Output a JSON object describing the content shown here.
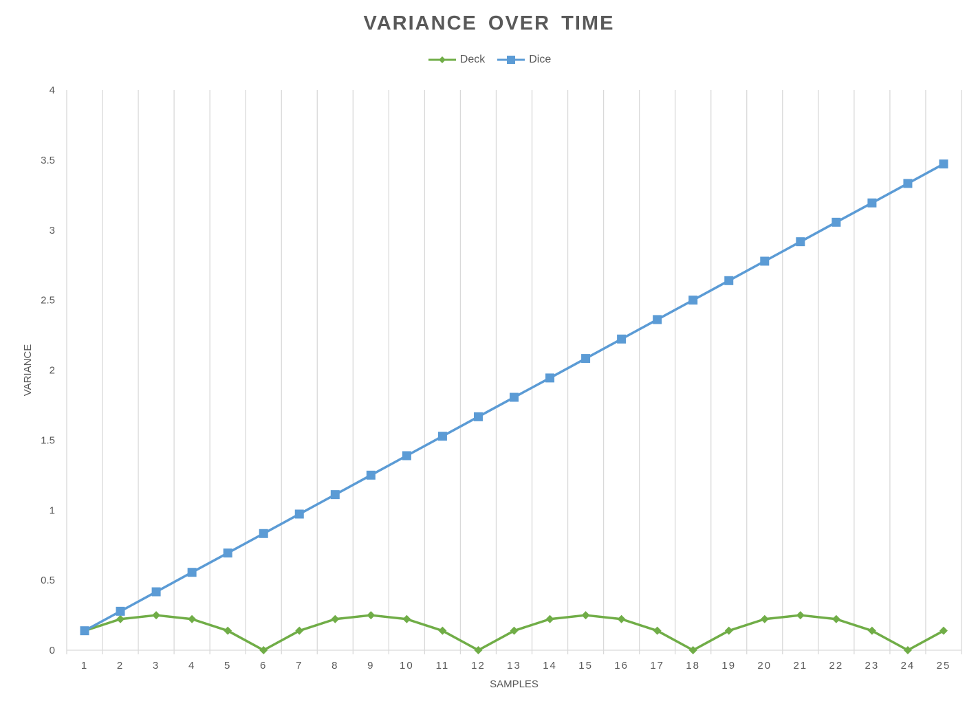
{
  "chart_data": {
    "type": "line",
    "title": "VARIANCE OVER TIME",
    "xlabel": "SAMPLES",
    "ylabel": "VARIANCE",
    "ylim": [
      0,
      4
    ],
    "yticks": [
      "0",
      "0.5",
      "1",
      "1.5",
      "2",
      "2.5",
      "3",
      "3.5",
      "4"
    ],
    "grid": "vertical",
    "legend_position": "top",
    "categories": [
      "1",
      "2",
      "3",
      "4",
      "5",
      "6",
      "7",
      "8",
      "9",
      "10",
      "11",
      "12",
      "13",
      "14",
      "15",
      "16",
      "17",
      "18",
      "19",
      "20",
      "21",
      "22",
      "23",
      "24",
      "25"
    ],
    "series": [
      {
        "name": "Deck",
        "color": "#70ad47",
        "marker": "diamond",
        "values": [
          0.139,
          0.222,
          0.25,
          0.222,
          0.139,
          0,
          0.139,
          0.222,
          0.25,
          0.222,
          0.139,
          0,
          0.139,
          0.222,
          0.25,
          0.222,
          0.139,
          0,
          0.139,
          0.222,
          0.25,
          0.222,
          0.139,
          0,
          0.139
        ]
      },
      {
        "name": "Dice",
        "color": "#5b9bd5",
        "marker": "square",
        "values": [
          0.139,
          0.278,
          0.417,
          0.556,
          0.694,
          0.833,
          0.972,
          1.111,
          1.25,
          1.389,
          1.528,
          1.667,
          1.806,
          1.944,
          2.083,
          2.222,
          2.361,
          2.5,
          2.639,
          2.778,
          2.917,
          3.056,
          3.194,
          3.333,
          3.472
        ]
      }
    ]
  }
}
